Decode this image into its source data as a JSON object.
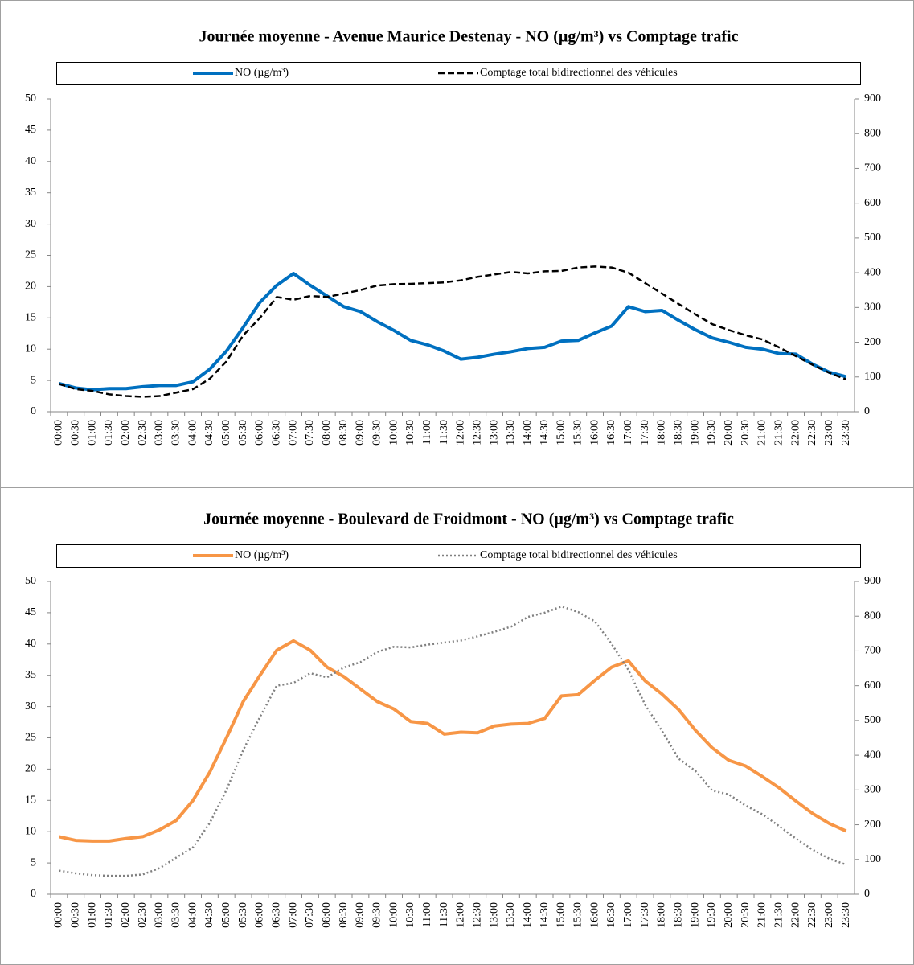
{
  "chart_data": [
    {
      "type": "line",
      "title": "Journée moyenne - Avenue Maurice Destenay - NO (µg/m³) vs Comptage trafic",
      "categories": [
        "00:00",
        "00:30",
        "01:00",
        "01:30",
        "02:00",
        "02:30",
        "03:00",
        "03:30",
        "04:00",
        "04:30",
        "05:00",
        "05:30",
        "06:00",
        "06:30",
        "07:00",
        "07:30",
        "08:00",
        "08:30",
        "09:00",
        "09:30",
        "10:00",
        "10:30",
        "11:00",
        "11:30",
        "12:00",
        "12:30",
        "13:00",
        "13:30",
        "14:00",
        "14:30",
        "15:00",
        "15:30",
        "16:00",
        "16:30",
        "17:00",
        "17:30",
        "18:00",
        "18:30",
        "19:00",
        "19:30",
        "20:00",
        "20:30",
        "21:00",
        "21:30",
        "22:00",
        "22:30",
        "23:00",
        "23:30"
      ],
      "series": [
        {
          "name": "NO (µg/m³)",
          "color": "#0070c0",
          "style": "solid",
          "axis": "y",
          "values": [
            4.5,
            3.8,
            3.5,
            3.7,
            3.7,
            4.0,
            4.2,
            4.2,
            4.8,
            6.8,
            9.7,
            13.5,
            17.5,
            20.2,
            22.1,
            20.2,
            18.5,
            16.8,
            16.0,
            14.4,
            13.0,
            11.4,
            10.7,
            9.7,
            8.4,
            8.7,
            9.2,
            9.6,
            10.1,
            10.3,
            11.3,
            11.4,
            12.6,
            13.7,
            16.8,
            16.0,
            16.2,
            14.6,
            13.1,
            11.8,
            11.1,
            10.3,
            10.0,
            9.3,
            9.2,
            7.6,
            6.3,
            5.6
          ]
        },
        {
          "name": "Comptage total bidirectionnel des véhicules",
          "color": "#000000",
          "style": "dashed",
          "axis": "y2",
          "values": [
            80,
            65,
            60,
            50,
            45,
            43,
            45,
            55,
            65,
            95,
            145,
            220,
            270,
            330,
            322,
            333,
            330,
            340,
            350,
            363,
            367,
            368,
            370,
            372,
            378,
            388,
            395,
            402,
            398,
            404,
            405,
            415,
            418,
            415,
            400,
            370,
            340,
            310,
            280,
            252,
            235,
            220,
            208,
            185,
            160,
            135,
            112,
            93
          ]
        }
      ],
      "ylim": [
        0,
        50
      ],
      "yticks": [
        0,
        5,
        10,
        15,
        20,
        25,
        30,
        35,
        40,
        45,
        50
      ],
      "y2lim": [
        0,
        900
      ],
      "y2ticks": [
        0,
        100,
        200,
        300,
        400,
        500,
        600,
        700,
        800,
        900
      ],
      "grid": false,
      "legend": "top"
    },
    {
      "type": "line",
      "title": "Journée moyenne - Boulevard de Froidmont - NO (µg/m³) vs Comptage trafic",
      "categories": [
        "00:00",
        "00:30",
        "01:00",
        "01:30",
        "02:00",
        "02:30",
        "03:00",
        "03:30",
        "04:00",
        "04:30",
        "05:00",
        "05:30",
        "06:00",
        "06:30",
        "07:00",
        "07:30",
        "08:00",
        "08:30",
        "09:00",
        "09:30",
        "10:00",
        "10:30",
        "11:00",
        "11:30",
        "12:00",
        "12:30",
        "13:00",
        "13:30",
        "14:00",
        "14:30",
        "15:00",
        "15:30",
        "16:00",
        "16:30",
        "17:00",
        "17:30",
        "18:00",
        "18:30",
        "19:00",
        "19:30",
        "20:00",
        "20:30",
        "21:00",
        "21:30",
        "22:00",
        "22:30",
        "23:00",
        "23:30"
      ],
      "series": [
        {
          "name": "NO (µg/m³)",
          "color": "#f79646",
          "style": "solid",
          "axis": "y",
          "values": [
            9.2,
            8.6,
            8.5,
            8.5,
            8.9,
            9.2,
            10.3,
            11.8,
            15,
            19.5,
            25,
            30.8,
            35,
            39,
            40.5,
            39,
            36.3,
            34.8,
            32.8,
            30.8,
            29.6,
            27.6,
            27.3,
            25.6,
            25.9,
            25.8,
            26.9,
            27.2,
            27.3,
            28.1,
            31.7,
            31.9,
            34.2,
            36.3,
            37.3,
            34.1,
            32,
            29.5,
            26.2,
            23.4,
            21.4,
            20.5,
            18.8,
            17,
            14.9,
            12.9,
            11.3,
            10.1
          ]
        },
        {
          "name": "Comptage total bidirectionnel des véhicules",
          "color": "#808080",
          "style": "dotted",
          "axis": "y2",
          "values": [
            68,
            60,
            55,
            53,
            53,
            57,
            75,
            105,
            135,
            205,
            300,
            415,
            510,
            600,
            608,
            636,
            624,
            652,
            668,
            697,
            712,
            710,
            718,
            724,
            730,
            742,
            755,
            770,
            798,
            810,
            828,
            812,
            785,
            720,
            645,
            545,
            470,
            390,
            355,
            298,
            287,
            255,
            230,
            196,
            160,
            128,
            102,
            85
          ]
        }
      ],
      "ylim": [
        0,
        50
      ],
      "yticks": [
        0,
        5,
        10,
        15,
        20,
        25,
        30,
        35,
        40,
        45,
        50
      ],
      "y2lim": [
        0,
        900
      ],
      "y2ticks": [
        0,
        100,
        200,
        300,
        400,
        500,
        600,
        700,
        800,
        900
      ],
      "grid": false,
      "legend": "top"
    }
  ]
}
